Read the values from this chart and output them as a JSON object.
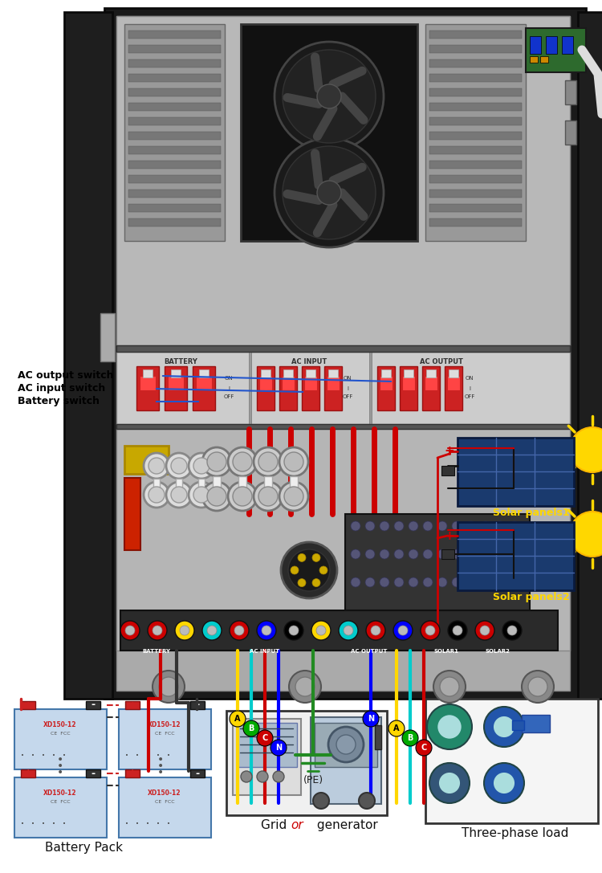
{
  "bg_color": "#ffffff",
  "labels": {
    "ac_output_switch": "AC output switch",
    "ac_input_switch": "AC input switch",
    "battery_switch": "Battery switch",
    "battery_pack": "Battery Pack",
    "grid_or_generator": "Grid or generator",
    "three_phase_load": "Three-phase load",
    "solar1": "Solar panels1",
    "solar2": "Solar panels2",
    "pe_label": "(PE)"
  },
  "phase_labels_in": [
    "A",
    "B",
    "C",
    "N"
  ],
  "phase_colors_in": [
    "#FFD700",
    "#00CCCC",
    "#FF0000",
    "#0000FF"
  ],
  "phase_labels_out": [
    "N",
    "A",
    "B",
    "C"
  ],
  "phase_colors_out": [
    "#0000FF",
    "#FFD700",
    "#00CCCC",
    "#FF0000"
  ]
}
